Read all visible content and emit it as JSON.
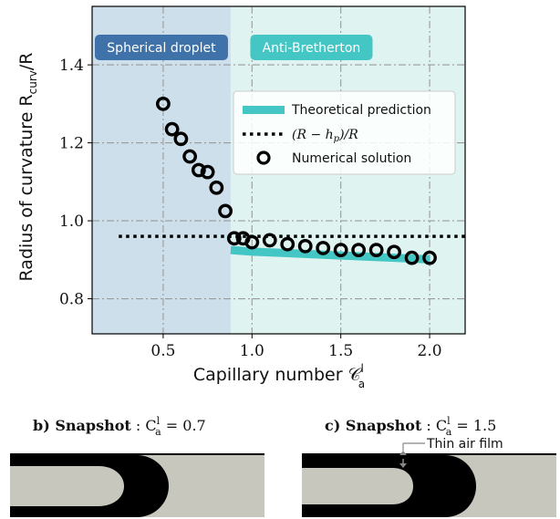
{
  "chart_data": {
    "type": "scatter",
    "xlabel": "Capillary number 𝒞",
    "xlabel_sup": "l",
    "xlabel_sub": "a",
    "ylabel": "Radius of curvature R",
    "ylabel_sub": "curv",
    "ylabel_tail": "/R",
    "xlim": [
      0.1,
      2.2
    ],
    "ylim": [
      0.71,
      1.55
    ],
    "xticks": [
      0.5,
      1.0,
      1.5,
      2.0
    ],
    "xtick_labels": [
      "0.5",
      "1.0",
      "1.5",
      "2.0"
    ],
    "yticks": [
      0.8,
      1.0,
      1.2,
      1.4
    ],
    "ytick_labels": [
      "0.8",
      "1.0",
      "1.2",
      "1.4"
    ],
    "grid": true,
    "legend_position": "upper-right",
    "regions": [
      {
        "label": "Spherical droplet",
        "x_start": 0.1,
        "x_end": 0.88,
        "color": "#cddfea",
        "label_bg": "#3f72a8"
      },
      {
        "label": "Anti-Bretherton",
        "x_start": 0.88,
        "x_end": 2.2,
        "color": "#dff3f1",
        "label_bg": "#44c7c4"
      }
    ],
    "series": [
      {
        "name": "Theoretical prediction",
        "kind": "band",
        "color": "#44c7c4",
        "x": [
          0.88,
          1.0,
          1.2,
          1.4,
          1.6,
          1.8,
          2.0
        ],
        "y": [
          0.925,
          0.921,
          0.917,
          0.913,
          0.909,
          0.905,
          0.901
        ]
      },
      {
        "name": "(R − h",
        "name_sub": "p",
        "name_tail": ")/R",
        "kind": "dotted-line",
        "color": "#000000",
        "x": [
          0.25,
          2.2
        ],
        "y": [
          0.96,
          0.96
        ]
      },
      {
        "name": "Numerical solution",
        "kind": "markers",
        "color": "#000000",
        "x": [
          0.5,
          0.55,
          0.6,
          0.65,
          0.7,
          0.75,
          0.8,
          0.85,
          0.9,
          0.95,
          1.0,
          1.1,
          1.2,
          1.3,
          1.4,
          1.5,
          1.6,
          1.7,
          1.8,
          1.9,
          2.0
        ],
        "y": [
          1.3,
          1.235,
          1.21,
          1.165,
          1.13,
          1.125,
          1.085,
          1.025,
          0.955,
          0.955,
          0.945,
          0.95,
          0.94,
          0.935,
          0.93,
          0.925,
          0.925,
          0.925,
          0.92,
          0.905,
          0.905
        ]
      }
    ]
  },
  "snapshots": [
    {
      "prefix": "b) ",
      "title": "Snapshot",
      "label": " : C",
      "sup": "l",
      "sub": "a",
      "value": " = 0.7"
    },
    {
      "prefix": "c) ",
      "title": "Snapshot",
      "label": " : C",
      "sup": "l",
      "sub": "a",
      "value": " = 1.5",
      "annotation": "Thin air film"
    }
  ]
}
